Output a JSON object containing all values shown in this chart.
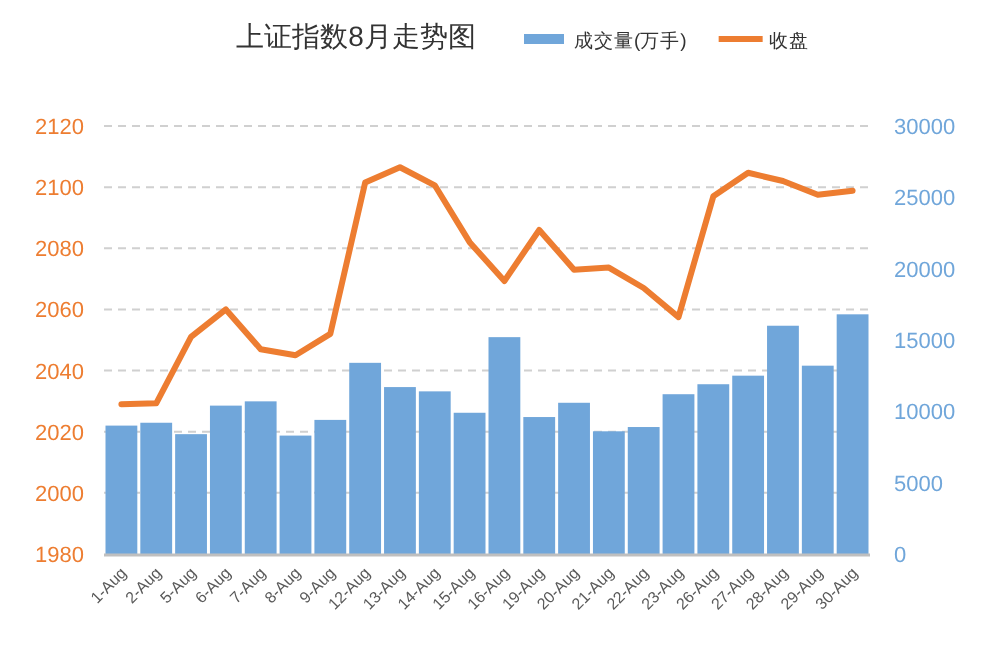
{
  "chart_data": {
    "type": "bar",
    "title": "上证指数8月走势图",
    "categories": [
      "1-Aug",
      "2-Aug",
      "5-Aug",
      "6-Aug",
      "7-Aug",
      "8-Aug",
      "9-Aug",
      "12-Aug",
      "13-Aug",
      "14-Aug",
      "15-Aug",
      "16-Aug",
      "19-Aug",
      "20-Aug",
      "21-Aug",
      "22-Aug",
      "23-Aug",
      "26-Aug",
      "27-Aug",
      "28-Aug",
      "29-Aug",
      "30-Aug"
    ],
    "series": [
      {
        "name": "成交量(万手)",
        "axis": "y2",
        "color": "#70a6da",
        "values": [
          9000,
          9200,
          8400,
          10400,
          10700,
          8300,
          9400,
          13400,
          11700,
          11400,
          9900,
          15200,
          9600,
          10600,
          8600,
          8900,
          11200,
          11900,
          12500,
          16000,
          13200,
          16800
        ]
      },
      {
        "name": "收盘",
        "type": "line",
        "color": "#ed7d31",
        "values": [
          2029,
          2029.3,
          2051,
          2060,
          2047,
          2045,
          2052,
          2101.5,
          2106.5,
          2100.6,
          2082,
          2069.3,
          2086,
          2073,
          2073.7,
          2067,
          2057.5,
          2097,
          2104.7,
          2102,
          2097.5,
          2098.8
        ]
      }
    ],
    "ylim": [
      1980,
      2120
    ],
    "yticks": [
      1980,
      2000,
      2020,
      2040,
      2060,
      2080,
      2100,
      2120
    ],
    "y2lim": [
      0,
      30000
    ],
    "y2ticks": [
      0,
      5000,
      10000,
      15000,
      20000,
      25000,
      30000
    ],
    "grid": "y",
    "legend": "top",
    "line_style": "solid",
    "marker": "none"
  }
}
